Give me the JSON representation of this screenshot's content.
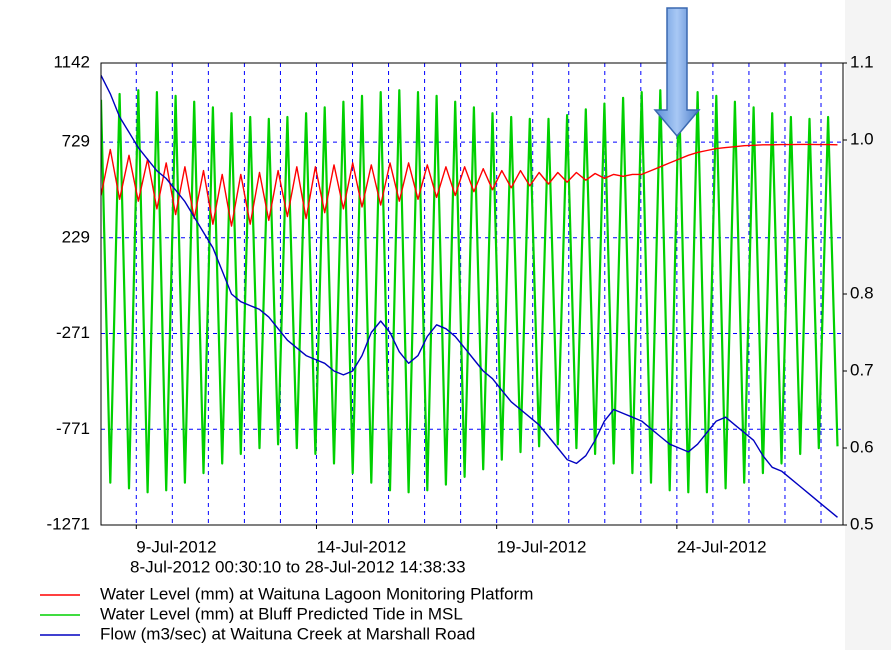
{
  "chart_data": {
    "type": "line",
    "subtitle": "8-Jul-2012 00:30:10 to 28-Jul-2012 14:38:33",
    "xlim": [
      "2012-07-08T00:30:10",
      "2012-07-28T14:38:33"
    ],
    "xticks": [
      {
        "value": "2012-07-09T00:00",
        "label": "9-Jul-2012"
      },
      {
        "value": "2012-07-14T00:00",
        "label": "14-Jul-2012"
      },
      {
        "value": "2012-07-19T00:00",
        "label": "19-Jul-2012"
      },
      {
        "value": "2012-07-24T00:00",
        "label": "24-Jul-2012"
      }
    ],
    "xgrid": [
      "2012-07-09T00:00",
      "2012-07-10T00:00",
      "2012-07-11T00:00",
      "2012-07-12T00:00",
      "2012-07-13T00:00",
      "2012-07-14T00:00",
      "2012-07-15T00:00",
      "2012-07-16T00:00",
      "2012-07-17T00:00",
      "2012-07-18T00:00",
      "2012-07-19T00:00",
      "2012-07-20T00:00",
      "2012-07-21T00:00",
      "2012-07-22T00:00",
      "2012-07-23T00:00",
      "2012-07-24T00:00",
      "2012-07-25T00:00",
      "2012-07-26T00:00",
      "2012-07-27T00:00",
      "2012-07-28T00:00"
    ],
    "ylim": [
      -1271,
      1142
    ],
    "yticks": [
      -1271,
      -771,
      -271,
      229,
      729,
      1142
    ],
    "y2lim": [
      0.5,
      1.1
    ],
    "y2ticks": [
      0.5,
      0.6,
      0.7,
      0.8,
      {
        "value": 1.0,
        "label": "1.0"
      },
      1.1
    ],
    "grid": true,
    "x": [
      "2012-07-08T00:30",
      "2012-07-08T06:42",
      "2012-07-08T12:55",
      "2012-07-08T19:07",
      "2012-07-09T01:20",
      "2012-07-09T07:32",
      "2012-07-09T13:45",
      "2012-07-09T19:57",
      "2012-07-10T02:10",
      "2012-07-10T08:22",
      "2012-07-10T14:35",
      "2012-07-10T20:47",
      "2012-07-11T03:00",
      "2012-07-11T09:12",
      "2012-07-11T15:25",
      "2012-07-11T21:37",
      "2012-07-12T03:50",
      "2012-07-12T10:02",
      "2012-07-12T16:15",
      "2012-07-12T22:27",
      "2012-07-13T04:40",
      "2012-07-13T10:52",
      "2012-07-13T17:05",
      "2012-07-13T23:17",
      "2012-07-14T05:30",
      "2012-07-14T11:42",
      "2012-07-14T17:55",
      "2012-07-15T00:07",
      "2012-07-15T06:20",
      "2012-07-15T12:32",
      "2012-07-15T18:45",
      "2012-07-16T00:57",
      "2012-07-16T07:10",
      "2012-07-16T13:22",
      "2012-07-16T19:35",
      "2012-07-17T01:47",
      "2012-07-17T08:00",
      "2012-07-17T14:12",
      "2012-07-17T20:25",
      "2012-07-18T02:37",
      "2012-07-18T08:50",
      "2012-07-18T15:02",
      "2012-07-18T21:15",
      "2012-07-19T03:27",
      "2012-07-19T09:40",
      "2012-07-19T15:52",
      "2012-07-19T22:05",
      "2012-07-20T04:17",
      "2012-07-20T10:30",
      "2012-07-20T16:42",
      "2012-07-20T22:55",
      "2012-07-21T05:07",
      "2012-07-21T11:20",
      "2012-07-21T17:32",
      "2012-07-21T23:45",
      "2012-07-22T05:57",
      "2012-07-22T12:10",
      "2012-07-22T18:22",
      "2012-07-23T00:35",
      "2012-07-23T06:47",
      "2012-07-23T13:00",
      "2012-07-23T19:12",
      "2012-07-24T01:25",
      "2012-07-24T07:37",
      "2012-07-24T13:50",
      "2012-07-24T20:02",
      "2012-07-25T02:15",
      "2012-07-25T08:27",
      "2012-07-25T14:40",
      "2012-07-25T20:52",
      "2012-07-26T03:05",
      "2012-07-26T09:17",
      "2012-07-26T15:30",
      "2012-07-26T21:42",
      "2012-07-27T03:55",
      "2012-07-27T10:07",
      "2012-07-27T16:20",
      "2012-07-27T22:32",
      "2012-07-28T04:45",
      "2012-07-28T10:57"
    ],
    "series": [
      {
        "name": "Water Level (mm) at Bluff Predicted Tide in MSL",
        "color": "#00d000",
        "values": [
          950,
          -1050,
          980,
          -1080,
          1000,
          -1100,
          990,
          -1090,
          970,
          -1050,
          940,
          -1000,
          910,
          -950,
          880,
          -900,
          860,
          -870,
          850,
          -850,
          860,
          -870,
          880,
          -900,
          910,
          -950,
          940,
          -1000,
          970,
          -1050,
          990,
          -1090,
          1000,
          -1100,
          990,
          -1090,
          970,
          -1060,
          940,
          -1020,
          910,
          -980,
          880,
          -930,
          860,
          -890,
          850,
          -860,
          850,
          -850,
          870,
          -870,
          900,
          -900,
          930,
          -950,
          960,
          -1000,
          990,
          -1050,
          1000,
          -1090,
          1000,
          -1100,
          990,
          -1100,
          970,
          -1080,
          940,
          -1050,
          910,
          -1000,
          880,
          -950,
          860,
          -900,
          850,
          -870,
          860,
          -860
        ]
      },
      {
        "name": "Water Level (mm) at Waituna Lagoon Monitoring Platform",
        "color": "#ff0000",
        "values": [
          450,
          690,
          430,
          660,
          420,
          640,
          380,
          620,
          350,
          600,
          330,
          580,
          300,
          560,
          290,
          560,
          300,
          570,
          320,
          580,
          340,
          600,
          330,
          600,
          360,
          610,
          380,
          620,
          390,
          610,
          400,
          620,
          420,
          620,
          430,
          610,
          440,
          600,
          450,
          600,
          470,
          590,
          480,
          580,
          490,
          580,
          500,
          570,
          510,
          570,
          520,
          570,
          530,
          565,
          540,
          560,
          550,
          560,
          560,
          580,
          600,
          620,
          640,
          660,
          675,
          685,
          695,
          700,
          705,
          710,
          712,
          715,
          715,
          716,
          716,
          717,
          717,
          716,
          716,
          715
        ]
      },
      {
        "name": "Flow (m3/sec) at Waituna Creek at Marshall Road",
        "color": "#0000c0",
        "axis": "y2",
        "values": [
          1.084,
          1.06,
          1.03,
          1.01,
          0.99,
          0.975,
          0.96,
          0.95,
          0.935,
          0.92,
          0.9,
          0.88,
          0.86,
          0.83,
          0.8,
          0.79,
          0.785,
          0.78,
          0.77,
          0.755,
          0.74,
          0.73,
          0.72,
          0.715,
          0.71,
          0.7,
          0.695,
          0.7,
          0.72,
          0.75,
          0.765,
          0.75,
          0.725,
          0.71,
          0.72,
          0.745,
          0.76,
          0.755,
          0.745,
          0.73,
          0.715,
          0.7,
          0.69,
          0.675,
          0.66,
          0.65,
          0.64,
          0.63,
          0.615,
          0.6,
          0.585,
          0.58,
          0.59,
          0.61,
          0.635,
          0.65,
          0.645,
          0.64,
          0.635,
          0.625,
          0.615,
          0.605,
          0.6,
          0.595,
          0.605,
          0.62,
          0.635,
          0.64,
          0.63,
          0.62,
          0.61,
          0.59,
          0.575,
          0.57,
          0.56,
          0.55,
          0.54,
          0.53,
          0.52,
          0.51
        ]
      }
    ],
    "legend_order": [
      1,
      0,
      2
    ]
  }
}
